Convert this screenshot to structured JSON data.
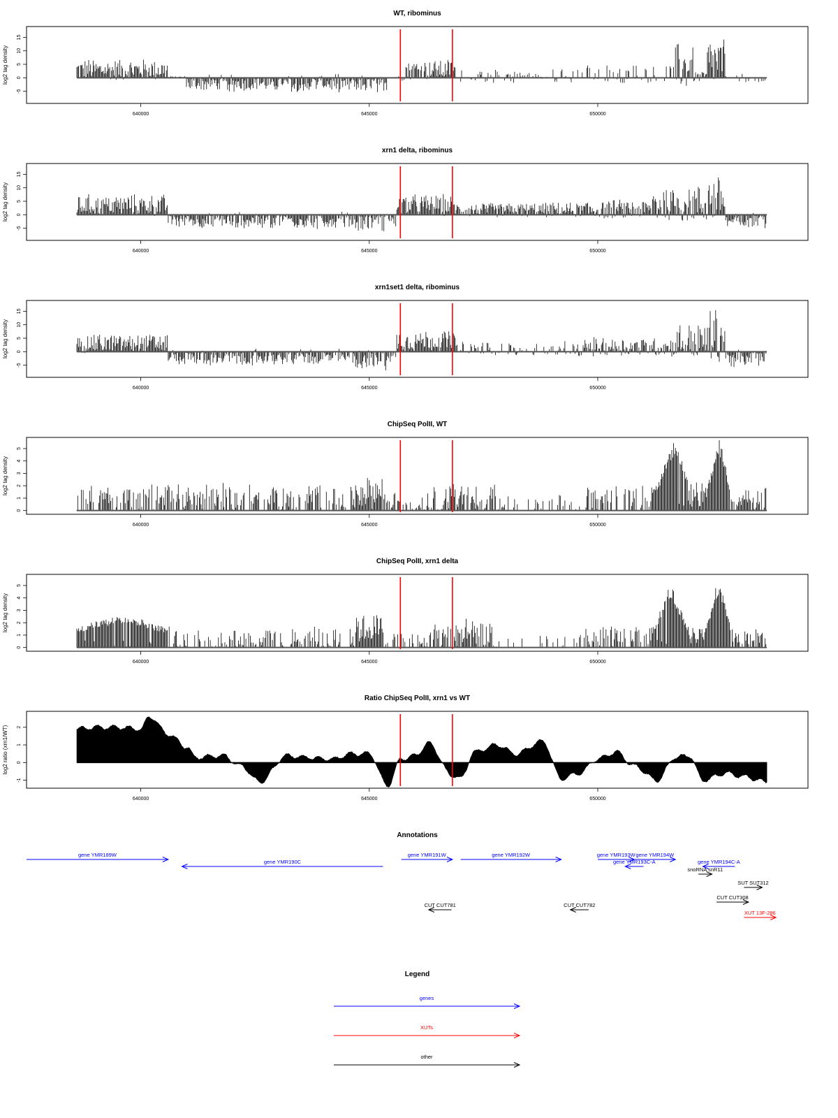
{
  "colors": {
    "genes": "#0000ff",
    "xuts": "#ff0000",
    "other": "#000000",
    "marker": "#ff0000",
    "bars": "#000000"
  },
  "x_axis": {
    "range": [
      637500,
      654600
    ],
    "ticks": [
      640000,
      645000,
      650000
    ],
    "tick_labels": [
      "640000",
      "645000",
      "650000"
    ]
  },
  "markers": [
    645680,
    646820
  ],
  "chart_data": [
    {
      "type": "bar",
      "id": "wt-ribominus",
      "title": "WT, ribominus",
      "ylabel": "log2 tag density",
      "ylim": [
        -9.5,
        19
      ],
      "yticks": [
        -5,
        0,
        5,
        10,
        15
      ],
      "ytick_labels": [
        "-5",
        "0",
        "5",
        "10",
        "15"
      ],
      "series": {
        "x_start": 638600,
        "x_end": 653700,
        "step": 20,
        "segments": [
          {
            "from": 638600,
            "to": 640600,
            "base": 3.0,
            "amp": 4.5
          },
          {
            "from": 640600,
            "to": 641000,
            "base": 0.2,
            "amp": 0.5
          },
          {
            "from": 641000,
            "to": 645400,
            "base": -2.0,
            "amp": 3.5
          },
          {
            "from": 645400,
            "to": 645700,
            "base": 0.2,
            "amp": 0.6
          },
          {
            "from": 645700,
            "to": 646900,
            "base": 3.0,
            "amp": 4.5
          },
          {
            "from": 646900,
            "to": 649700,
            "base": 0.6,
            "amp": 3.0,
            "sparse": 0.55
          },
          {
            "from": 649700,
            "to": 651700,
            "base": 1.5,
            "amp": 4.0,
            "sparse": 0.5
          },
          {
            "from": 651700,
            "to": 652100,
            "base": 4.0,
            "amp": 10.0
          },
          {
            "from": 652100,
            "to": 652400,
            "base": 0.5,
            "amp": 2.5
          },
          {
            "from": 652400,
            "to": 652800,
            "base": 6.0,
            "amp": 10.0
          },
          {
            "from": 652800,
            "to": 653700,
            "base": -0.6,
            "amp": 2.5,
            "sparse": 0.6
          }
        ]
      }
    },
    {
      "type": "bar",
      "id": "xrn1-ribominus",
      "title": "xrn1 delta, ribominus",
      "ylabel": "log2 tag density",
      "ylim": [
        -9.5,
        19
      ],
      "yticks": [
        -5,
        0,
        5,
        10,
        15
      ],
      "ytick_labels": [
        "-5",
        "0",
        "5",
        "10",
        "15"
      ],
      "series": {
        "x_start": 638600,
        "x_end": 653700,
        "step": 20,
        "segments": [
          {
            "from": 638600,
            "to": 640600,
            "base": 3.5,
            "amp": 4.5
          },
          {
            "from": 640600,
            "to": 644700,
            "base": -2.0,
            "amp": 3.5
          },
          {
            "from": 644700,
            "to": 645600,
            "base": -2.5,
            "amp": 4.0
          },
          {
            "from": 645600,
            "to": 646900,
            "base": 3.5,
            "amp": 4.5
          },
          {
            "from": 646900,
            "to": 649700,
            "base": 1.8,
            "amp": 3.0
          },
          {
            "from": 649700,
            "to": 651200,
            "base": 2.0,
            "amp": 4.0
          },
          {
            "from": 651200,
            "to": 652400,
            "base": 4.0,
            "amp": 8.0
          },
          {
            "from": 652400,
            "to": 652800,
            "base": 6.0,
            "amp": 10.5
          },
          {
            "from": 652800,
            "to": 653700,
            "base": -2.5,
            "amp": 4.0
          }
        ]
      }
    },
    {
      "type": "bar",
      "id": "xrn1set1-ribominus",
      "title": "xrn1set1 delta, ribominus",
      "ylabel": "log2 tag density",
      "ylim": [
        -9.5,
        19
      ],
      "yticks": [
        -5,
        0,
        5,
        10,
        15
      ],
      "ytick_labels": [
        "-5",
        "0",
        "5",
        "10",
        "15"
      ],
      "series": {
        "x_start": 638600,
        "x_end": 653700,
        "step": 20,
        "segments": [
          {
            "from": 638600,
            "to": 640600,
            "base": 3.0,
            "amp": 4.0
          },
          {
            "from": 640600,
            "to": 644700,
            "base": -2.0,
            "amp": 3.5
          },
          {
            "from": 644700,
            "to": 645600,
            "base": -2.5,
            "amp": 4.5
          },
          {
            "from": 645600,
            "to": 646900,
            "base": 4.0,
            "amp": 4.5
          },
          {
            "from": 646900,
            "to": 649700,
            "base": 1.0,
            "amp": 3.0,
            "sparse": 0.45
          },
          {
            "from": 649700,
            "to": 651700,
            "base": 1.8,
            "amp": 4.0
          },
          {
            "from": 651700,
            "to": 652400,
            "base": 3.5,
            "amp": 8.0
          },
          {
            "from": 652400,
            "to": 652800,
            "base": 5.5,
            "amp": 12.0
          },
          {
            "from": 652800,
            "to": 653700,
            "base": -2.0,
            "amp": 4.0
          }
        ]
      }
    },
    {
      "type": "bar",
      "id": "chipseq-polii-wt",
      "title": "ChipSeq PolII, WT",
      "ylabel": "log2 tag density",
      "ylim": [
        -0.3,
        5.9
      ],
      "yticks": [
        0,
        1,
        2,
        3,
        4,
        5
      ],
      "ytick_labels": [
        "0",
        "1",
        "2",
        "3",
        "4",
        "5"
      ],
      "series": {
        "x_start": 638600,
        "x_end": 653700,
        "step": 20,
        "positive": true,
        "segments": [
          {
            "from": 638600,
            "to": 644700,
            "base": 0.9,
            "amp": 1.4,
            "sparse": 0.3
          },
          {
            "from": 644700,
            "to": 645300,
            "base": 1.5,
            "amp": 1.4
          },
          {
            "from": 645300,
            "to": 645700,
            "base": 0.8,
            "amp": 0.8,
            "sparse": 0.4
          },
          {
            "from": 645700,
            "to": 646400,
            "base": 0.6,
            "amp": 1.0,
            "sparse": 0.5
          },
          {
            "from": 646400,
            "to": 647800,
            "base": 1.0,
            "amp": 1.4,
            "sparse": 0.3
          },
          {
            "from": 647800,
            "to": 649700,
            "base": 0.5,
            "amp": 0.8,
            "sparse": 0.75
          },
          {
            "from": 649700,
            "to": 651200,
            "base": 1.0,
            "amp": 1.2,
            "sparse": 0.25
          },
          {
            "from": 651200,
            "to": 652000,
            "peak": 5.4,
            "center": 651650,
            "width": 400,
            "floor": 1.0
          },
          {
            "from": 652000,
            "to": 652400,
            "base": 1.2,
            "amp": 1.2
          },
          {
            "from": 652400,
            "to": 652900,
            "peak": 5.6,
            "center": 652650,
            "width": 260,
            "floor": 1.0
          },
          {
            "from": 652900,
            "to": 653700,
            "base": 1.0,
            "amp": 1.0,
            "sparse": 0.2
          }
        ]
      }
    },
    {
      "type": "bar",
      "id": "chipseq-polii-xrn1",
      "title": "ChipSeq PolII, xrn1 delta",
      "ylabel": "log2 tag density",
      "ylim": [
        -0.3,
        5.9
      ],
      "yticks": [
        0,
        1,
        2,
        3,
        4,
        5
      ],
      "ytick_labels": [
        "0",
        "1",
        "2",
        "3",
        "4",
        "5"
      ],
      "series": {
        "x_start": 638600,
        "x_end": 653700,
        "step": 20,
        "positive": true,
        "segments": [
          {
            "from": 638600,
            "to": 640600,
            "peak": 2.2,
            "center": 639600,
            "width": 1200,
            "floor": 0.9
          },
          {
            "from": 640600,
            "to": 644700,
            "base": 0.6,
            "amp": 1.2,
            "sparse": 0.35
          },
          {
            "from": 644700,
            "to": 645300,
            "base": 1.5,
            "amp": 1.4
          },
          {
            "from": 645300,
            "to": 646400,
            "base": 0.5,
            "amp": 0.9,
            "sparse": 0.45
          },
          {
            "from": 646400,
            "to": 647800,
            "base": 1.0,
            "amp": 1.4,
            "sparse": 0.3
          },
          {
            "from": 647800,
            "to": 649700,
            "base": 0.4,
            "amp": 0.8,
            "sparse": 0.8
          },
          {
            "from": 649700,
            "to": 651200,
            "base": 0.8,
            "amp": 1.0,
            "sparse": 0.3
          },
          {
            "from": 651200,
            "to": 652000,
            "peak": 4.4,
            "center": 651600,
            "width": 420,
            "floor": 0.8
          },
          {
            "from": 652000,
            "to": 652400,
            "base": 0.9,
            "amp": 1.0
          },
          {
            "from": 652400,
            "to": 652900,
            "peak": 4.8,
            "center": 652650,
            "width": 300,
            "floor": 0.9
          },
          {
            "from": 652900,
            "to": 653700,
            "base": 0.8,
            "amp": 0.8,
            "sparse": 0.2
          }
        ]
      }
    },
    {
      "type": "area",
      "id": "ratio-xrn1-vs-wt",
      "title": "Ratio ChipSeq PolII, xrn1 vs WT",
      "ylabel": "log2 ratio (xrn1/WT)",
      "ylim": [
        -1.45,
        2.9
      ],
      "yticks": [
        -1,
        0,
        1,
        2
      ],
      "ytick_labels": [
        "-1",
        "0",
        "1",
        "2"
      ],
      "x": [
        638600,
        639000,
        639500,
        640000,
        640200,
        640600,
        641000,
        641200,
        641800,
        642200,
        642600,
        643200,
        643600,
        644200,
        644600,
        645000,
        645400,
        645700,
        646000,
        646300,
        646800,
        647000,
        647300,
        647800,
        648200,
        648800,
        649200,
        649600,
        650000,
        650400,
        650800,
        651300,
        651700,
        652000,
        652300,
        652800,
        653200,
        653700
      ],
      "values": [
        1.9,
        2.0,
        2.0,
        1.9,
        2.6,
        1.6,
        0.9,
        0.3,
        0.4,
        -0.2,
        -1.1,
        0.4,
        0.3,
        0.2,
        0.5,
        0.5,
        -1.3,
        0.2,
        0.4,
        1.1,
        -0.7,
        -0.9,
        0.6,
        1.0,
        0.5,
        1.2,
        -0.9,
        -0.6,
        0.2,
        0.6,
        -0.2,
        -1.0,
        0.3,
        0.4,
        -1.0,
        -0.6,
        -0.8,
        -1.1
      ]
    }
  ],
  "annotations": {
    "title": "Annotations",
    "features": [
      {
        "label": "gene YMR189W",
        "type": "genes",
        "strand": "+",
        "start": 637500,
        "end": 640600,
        "row": 0
      },
      {
        "label": "gene YMR190C",
        "type": "genes",
        "strand": "-",
        "start": 640900,
        "end": 645300,
        "row": 1
      },
      {
        "label": "gene YMR191W",
        "type": "genes",
        "strand": "+",
        "start": 645700,
        "end": 646820,
        "row": 0
      },
      {
        "label": "gene YMR192W",
        "type": "genes",
        "strand": "+",
        "start": 647000,
        "end": 649200,
        "row": 0
      },
      {
        "label": "gene YMR193W",
        "type": "genes",
        "strand": "+",
        "start": 650000,
        "end": 650800,
        "row": 0
      },
      {
        "label": "gene YMR194W",
        "type": "genes",
        "strand": "+",
        "start": 650800,
        "end": 651700,
        "row": 0
      },
      {
        "label": "gene YMR193C-A",
        "type": "genes",
        "strand": "-",
        "start": 650600,
        "end": 651000,
        "row": 1
      },
      {
        "label": "gene YMR194C-A",
        "type": "genes",
        "strand": "-",
        "start": 652300,
        "end": 653000,
        "row": 1
      },
      {
        "label": "snoRNA snR11",
        "type": "other",
        "strand": "+",
        "start": 652200,
        "end": 652500,
        "row": 2
      },
      {
        "label": "SUT SUT312",
        "type": "other",
        "strand": "+",
        "start": 653200,
        "end": 653600,
        "row": 3
      },
      {
        "label": "CUT CUT781",
        "type": "other",
        "strand": "-",
        "start": 646300,
        "end": 646800,
        "row": 5
      },
      {
        "label": "CUT CUT782",
        "type": "other",
        "strand": "-",
        "start": 649400,
        "end": 649800,
        "row": 5
      },
      {
        "label": "CUT CUT308",
        "type": "other",
        "strand": "+",
        "start": 652600,
        "end": 653300,
        "row": 4
      },
      {
        "label": "XUT 13F-286",
        "type": "xuts",
        "strand": "+",
        "start": 653200,
        "end": 653900,
        "row": 6
      }
    ]
  },
  "legend": {
    "title": "Legend",
    "items": [
      {
        "label": "genes",
        "type": "genes"
      },
      {
        "label": "XUTs",
        "type": "xuts"
      },
      {
        "label": "other",
        "type": "other"
      }
    ]
  }
}
